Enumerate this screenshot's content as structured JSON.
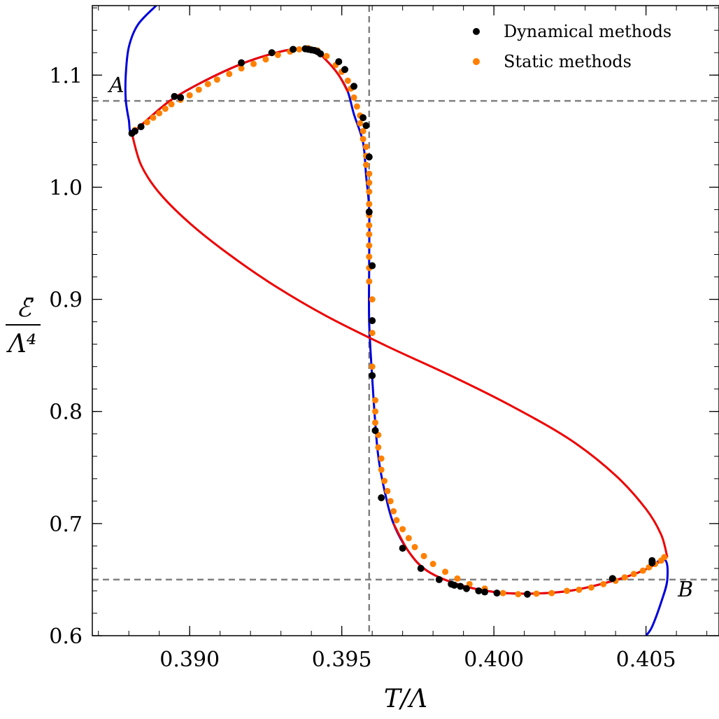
{
  "chart_data": {
    "type": "scatter",
    "xlabel": "T/Λ",
    "ylabel_numerator": "ℰ̄",
    "ylabel_denominator": "Λ⁴",
    "xlim": [
      0.3868,
      0.4074
    ],
    "ylim": [
      0.6,
      1.162
    ],
    "x_ticks": [
      0.39,
      0.395,
      0.4,
      0.405
    ],
    "x_tick_labels": [
      "0.390",
      "0.395",
      "0.400",
      "0.405"
    ],
    "y_ticks": [
      0.6,
      0.7,
      0.8,
      0.9,
      1.0,
      1.1
    ],
    "y_tick_labels": [
      "0.6",
      "0.7",
      "0.8",
      "0.9",
      "1.0",
      "1.1"
    ],
    "x_minor_step": 0.001,
    "y_minor_step": 0.02,
    "grid": false,
    "legend_position": "top-right",
    "reference_lines": {
      "vertical_x": 0.3959,
      "horizontal_y": [
        1.077,
        0.65
      ]
    },
    "point_labels": [
      {
        "text": "A",
        "x": 0.3876,
        "y": 1.085
      },
      {
        "text": "B",
        "x": 0.4063,
        "y": 0.635
      }
    ],
    "curves": [
      {
        "color": "#0000dd",
        "points": [
          [
            0.3889,
            1.162
          ],
          [
            0.3883,
            1.145
          ],
          [
            0.388,
            1.125
          ],
          [
            0.3879,
            1.1
          ],
          [
            0.3879,
            1.078
          ],
          [
            0.388,
            1.06
          ],
          [
            0.3881,
            1.048
          ],
          [
            0.3886,
            1.06
          ],
          [
            0.3894,
            1.078
          ],
          [
            0.3905,
            1.095
          ],
          [
            0.3917,
            1.11
          ],
          [
            0.3927,
            1.119
          ],
          [
            0.3935,
            1.1235
          ],
          [
            0.3941,
            1.122
          ],
          [
            0.3945,
            1.113
          ],
          [
            0.3949,
            1.1
          ],
          [
            0.3952,
            1.085
          ],
          [
            0.3954,
            1.065
          ],
          [
            0.3957,
            1.04
          ],
          [
            0.3958,
            1.01
          ],
          [
            0.3959,
            0.98
          ],
          [
            0.3959,
            0.93
          ],
          [
            0.3959,
            0.88
          ],
          [
            0.396,
            0.83
          ],
          [
            0.3961,
            0.79
          ],
          [
            0.3962,
            0.76
          ],
          [
            0.3964,
            0.73
          ],
          [
            0.3967,
            0.7
          ],
          [
            0.3972,
            0.675
          ],
          [
            0.3978,
            0.658
          ],
          [
            0.3988,
            0.646
          ],
          [
            0.4,
            0.639
          ],
          [
            0.4012,
            0.6375
          ],
          [
            0.4025,
            0.64
          ],
          [
            0.4038,
            0.648
          ],
          [
            0.4049,
            0.658
          ],
          [
            0.4056,
            0.668
          ],
          [
            0.4057,
            0.65
          ],
          [
            0.4055,
            0.63
          ],
          [
            0.4052,
            0.608
          ],
          [
            0.405,
            0.6
          ]
        ]
      },
      {
        "color": "#ee0000",
        "points": [
          [
            0.3881,
            1.048
          ],
          [
            0.3886,
            1.06
          ],
          [
            0.3894,
            1.078
          ],
          [
            0.3905,
            1.095
          ],
          [
            0.3917,
            1.11
          ],
          [
            0.3927,
            1.119
          ],
          [
            0.3935,
            1.1235
          ],
          [
            0.3941,
            1.122
          ],
          [
            0.3945,
            1.113
          ],
          [
            0.3949,
            1.1
          ],
          [
            0.3952,
            1.085
          ]
        ]
      },
      {
        "color": "#ee0000",
        "points": [
          [
            0.3881,
            1.048
          ],
          [
            0.3884,
            1.02
          ],
          [
            0.389,
            0.995
          ],
          [
            0.39,
            0.968
          ],
          [
            0.3913,
            0.94
          ],
          [
            0.3928,
            0.912
          ],
          [
            0.3945,
            0.885
          ],
          [
            0.3965,
            0.858
          ],
          [
            0.3985,
            0.833
          ],
          [
            0.4005,
            0.806
          ],
          [
            0.4025,
            0.775
          ],
          [
            0.404,
            0.743
          ],
          [
            0.405,
            0.713
          ],
          [
            0.4055,
            0.69
          ],
          [
            0.4057,
            0.67
          ]
        ]
      },
      {
        "color": "#ee0000",
        "points": [
          [
            0.3967,
            0.7
          ],
          [
            0.3972,
            0.675
          ],
          [
            0.3978,
            0.658
          ],
          [
            0.3988,
            0.646
          ],
          [
            0.4,
            0.639
          ],
          [
            0.4012,
            0.6375
          ],
          [
            0.4025,
            0.64
          ],
          [
            0.4038,
            0.648
          ],
          [
            0.4049,
            0.658
          ],
          [
            0.4057,
            0.67
          ]
        ]
      }
    ],
    "series": [
      {
        "name": "Dynamical methods",
        "color": "#000000",
        "points": [
          [
            0.3881,
            1.048
          ],
          [
            0.3882,
            1.05
          ],
          [
            0.3884,
            1.054
          ],
          [
            0.3895,
            1.081
          ],
          [
            0.3897,
            1.08
          ],
          [
            0.3917,
            1.111
          ],
          [
            0.3927,
            1.12
          ],
          [
            0.3934,
            1.123
          ],
          [
            0.3938,
            1.1235
          ],
          [
            0.3939,
            1.123
          ],
          [
            0.394,
            1.1225
          ],
          [
            0.3941,
            1.122
          ],
          [
            0.3942,
            1.121
          ],
          [
            0.3943,
            1.119
          ],
          [
            0.3949,
            1.112
          ],
          [
            0.3951,
            1.105
          ],
          [
            0.3954,
            1.09
          ],
          [
            0.3957,
            1.062
          ],
          [
            0.3958,
            1.055
          ],
          [
            0.3959,
            1.027
          ],
          [
            0.3959,
            0.978
          ],
          [
            0.396,
            0.93
          ],
          [
            0.396,
            0.881
          ],
          [
            0.396,
            0.832
          ],
          [
            0.3961,
            0.783
          ],
          [
            0.3963,
            0.723
          ],
          [
            0.397,
            0.678
          ],
          [
            0.3976,
            0.66
          ],
          [
            0.3982,
            0.65
          ],
          [
            0.3986,
            0.646
          ],
          [
            0.3987,
            0.645
          ],
          [
            0.3989,
            0.644
          ],
          [
            0.3991,
            0.642
          ],
          [
            0.3995,
            0.64
          ],
          [
            0.3997,
            0.639
          ],
          [
            0.4001,
            0.638
          ],
          [
            0.4011,
            0.637
          ],
          [
            0.4039,
            0.651
          ],
          [
            0.4052,
            0.665
          ],
          [
            0.4052,
            0.667
          ]
        ]
      },
      {
        "name": "Static methods",
        "color": "#ff8000",
        "points": [
          [
            0.3882,
            1.051
          ],
          [
            0.3886,
            1.058
          ],
          [
            0.3888,
            1.062
          ],
          [
            0.389,
            1.066
          ],
          [
            0.3892,
            1.07
          ],
          [
            0.3894,
            1.074
          ],
          [
            0.3897,
            1.078
          ],
          [
            0.39,
            1.082
          ],
          [
            0.3903,
            1.087
          ],
          [
            0.3906,
            1.092
          ],
          [
            0.3909,
            1.096
          ],
          [
            0.3913,
            1.101
          ],
          [
            0.3917,
            1.106
          ],
          [
            0.3921,
            1.11
          ],
          [
            0.3925,
            1.114
          ],
          [
            0.3929,
            1.118
          ],
          [
            0.3933,
            1.121
          ],
          [
            0.3936,
            1.123
          ],
          [
            0.3939,
            1.124
          ],
          [
            0.3942,
            1.122
          ],
          [
            0.3945,
            1.117
          ],
          [
            0.3948,
            1.109
          ],
          [
            0.395,
            1.103
          ],
          [
            0.3952,
            1.095
          ],
          [
            0.3953,
            1.088
          ],
          [
            0.3954,
            1.08
          ],
          [
            0.3955,
            1.072
          ],
          [
            0.3956,
            1.064
          ],
          [
            0.3956,
            1.057
          ],
          [
            0.3957,
            1.05
          ],
          [
            0.3957,
            1.043
          ],
          [
            0.3958,
            1.036
          ],
          [
            0.3958,
            1.028
          ],
          [
            0.3958,
            1.02
          ],
          [
            0.3959,
            1.012
          ],
          [
            0.3959,
            1.004
          ],
          [
            0.3959,
            0.996
          ],
          [
            0.3959,
            0.985
          ],
          [
            0.3959,
            0.975
          ],
          [
            0.3959,
            0.966
          ],
          [
            0.3959,
            0.958
          ],
          [
            0.3959,
            0.948
          ],
          [
            0.3959,
            0.938
          ],
          [
            0.3959,
            0.928
          ],
          [
            0.3959,
            0.916
          ],
          [
            0.396,
            0.9
          ],
          [
            0.396,
            0.87
          ],
          [
            0.396,
            0.84
          ],
          [
            0.3961,
            0.81
          ],
          [
            0.3961,
            0.8
          ],
          [
            0.3961,
            0.79
          ],
          [
            0.3962,
            0.779
          ],
          [
            0.3962,
            0.768
          ],
          [
            0.3963,
            0.758
          ],
          [
            0.3963,
            0.748
          ],
          [
            0.3964,
            0.738
          ],
          [
            0.3965,
            0.729
          ],
          [
            0.3966,
            0.72
          ],
          [
            0.3967,
            0.711
          ],
          [
            0.3968,
            0.703
          ],
          [
            0.397,
            0.695
          ],
          [
            0.3972,
            0.687
          ],
          [
            0.3974,
            0.679
          ],
          [
            0.3977,
            0.671
          ],
          [
            0.398,
            0.664
          ],
          [
            0.3984,
            0.657
          ],
          [
            0.3988,
            0.651
          ],
          [
            0.3992,
            0.646
          ],
          [
            0.3997,
            0.642
          ],
          [
            0.4003,
            0.638
          ],
          [
            0.4008,
            0.637
          ],
          [
            0.4014,
            0.6375
          ],
          [
            0.4019,
            0.638
          ],
          [
            0.4024,
            0.64
          ],
          [
            0.4028,
            0.641
          ],
          [
            0.4032,
            0.643
          ],
          [
            0.4036,
            0.646
          ],
          [
            0.404,
            0.649
          ],
          [
            0.4043,
            0.652
          ],
          [
            0.4046,
            0.655
          ],
          [
            0.4049,
            0.658
          ],
          [
            0.4051,
            0.661
          ],
          [
            0.4053,
            0.664
          ],
          [
            0.4055,
            0.667
          ],
          [
            0.4056,
            0.67
          ]
        ]
      }
    ]
  }
}
